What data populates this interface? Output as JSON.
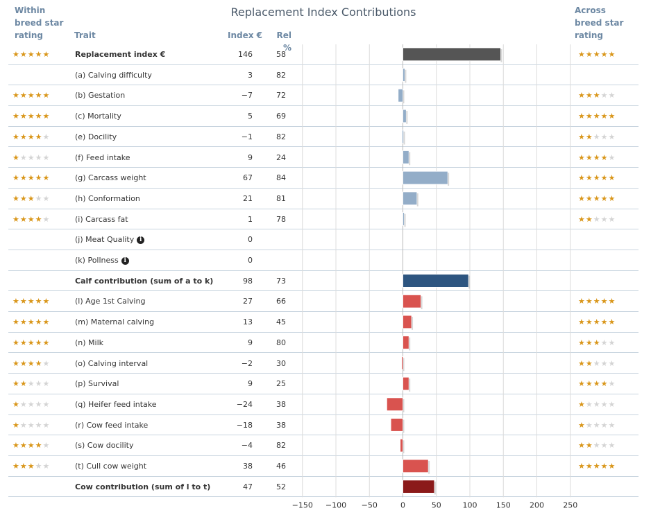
{
  "title": "Replacement Index Contributions",
  "headers": {
    "within": [
      "Within",
      "breed star",
      "rating"
    ],
    "trait": "Trait",
    "index": "Index €",
    "rel": "Rel %",
    "across": [
      "Across",
      "breed star",
      "rating"
    ]
  },
  "colors": {
    "overall": "#555555",
    "calf_trait": "#93adc8",
    "calf_total": "#2d5580",
    "cow_trait": "#d9534f",
    "cow_total": "#8b1a1a",
    "star_on": "#d9961a",
    "star_off": "#d4d4d4"
  },
  "rows": [
    {
      "trait": "Replacement index €",
      "index": "146",
      "rel": "58",
      "within": 5,
      "across": 5,
      "bold": true,
      "info": false
    },
    {
      "trait": "(a) Calving difficulty",
      "index": "3",
      "rel": "82",
      "within": null,
      "across": null,
      "bold": false,
      "info": false
    },
    {
      "trait": "(b) Gestation",
      "index": "−7",
      "rel": "72",
      "within": 5,
      "across": 3,
      "bold": false,
      "info": false
    },
    {
      "trait": "(c) Mortality",
      "index": "5",
      "rel": "69",
      "within": 5,
      "across": 5,
      "bold": false,
      "info": false
    },
    {
      "trait": "(e) Docility",
      "index": "−1",
      "rel": "82",
      "within": 4,
      "across": 2,
      "bold": false,
      "info": false
    },
    {
      "trait": "(f) Feed intake",
      "index": "9",
      "rel": "24",
      "within": 1,
      "across": 4,
      "bold": false,
      "info": false
    },
    {
      "trait": "(g) Carcass weight",
      "index": "67",
      "rel": "84",
      "within": 5,
      "across": 5,
      "bold": false,
      "info": false
    },
    {
      "trait": "(h) Conformation",
      "index": "21",
      "rel": "81",
      "within": 3,
      "across": 5,
      "bold": false,
      "info": false
    },
    {
      "trait": "(i) Carcass fat",
      "index": "1",
      "rel": "78",
      "within": 4,
      "across": 2,
      "bold": false,
      "info": false
    },
    {
      "trait": "(j) Meat Quality",
      "index": "0",
      "rel": "",
      "within": null,
      "across": null,
      "bold": false,
      "info": true
    },
    {
      "trait": "(k) Pollness",
      "index": "0",
      "rel": "",
      "within": null,
      "across": null,
      "bold": false,
      "info": true
    },
    {
      "trait": "Calf contribution (sum of a to k)",
      "index": "98",
      "rel": "73",
      "within": null,
      "across": null,
      "bold": true,
      "info": false
    },
    {
      "trait": "(l) Age 1st Calving",
      "index": "27",
      "rel": "66",
      "within": 5,
      "across": 5,
      "bold": false,
      "info": false
    },
    {
      "trait": "(m) Maternal calving",
      "index": "13",
      "rel": "45",
      "within": 5,
      "across": 5,
      "bold": false,
      "info": false
    },
    {
      "trait": "(n) Milk",
      "index": "9",
      "rel": "80",
      "within": 5,
      "across": 3,
      "bold": false,
      "info": false
    },
    {
      "trait": "(o) Calving interval",
      "index": "−2",
      "rel": "30",
      "within": 4,
      "across": 2,
      "bold": false,
      "info": false
    },
    {
      "trait": "(p) Survival",
      "index": "9",
      "rel": "25",
      "within": 2,
      "across": 4,
      "bold": false,
      "info": false
    },
    {
      "trait": "(q) Heifer feed intake",
      "index": "−24",
      "rel": "38",
      "within": 1,
      "across": 1,
      "bold": false,
      "info": false
    },
    {
      "trait": "(r) Cow feed intake",
      "index": "−18",
      "rel": "38",
      "within": 1,
      "across": 1,
      "bold": false,
      "info": false
    },
    {
      "trait": "(s) Cow docility",
      "index": "−4",
      "rel": "82",
      "within": 4,
      "across": 2,
      "bold": false,
      "info": false
    },
    {
      "trait": "(t) Cull cow weight",
      "index": "38",
      "rel": "46",
      "within": 3,
      "across": 5,
      "bold": false,
      "info": false
    },
    {
      "trait": "Cow contribution (sum of l to t)",
      "index": "47",
      "rel": "52",
      "within": null,
      "across": null,
      "bold": true,
      "info": false
    }
  ],
  "chart_data": {
    "type": "bar",
    "orientation": "horizontal",
    "title": "Replacement Index Contributions",
    "xlim": [
      -150,
      250
    ],
    "x_ticks": [
      "−150",
      "−100",
      "−50",
      "0",
      "50",
      "100",
      "150",
      "200",
      "250"
    ],
    "x_tick_values": [
      -150,
      -100,
      -50,
      0,
      50,
      100,
      150,
      200,
      250
    ],
    "grid": true,
    "categories": [
      "Replacement index €",
      "(a) Calving difficulty",
      "(b) Gestation",
      "(c) Mortality",
      "(e) Docility",
      "(f) Feed intake",
      "(g) Carcass weight",
      "(h) Conformation",
      "(i) Carcass fat",
      "(j) Meat Quality",
      "(k) Pollness",
      "Calf contribution (sum of a to k)",
      "(l) Age 1st Calving",
      "(m) Maternal calving",
      "(n) Milk",
      "(o) Calving interval",
      "(p) Survival",
      "(q) Heifer feed intake",
      "(r) Cow feed intake",
      "(s) Cow docility",
      "(t) Cull cow weight",
      "Cow contribution (sum of l to t)"
    ],
    "values": [
      146,
      3,
      -7,
      5,
      -1,
      9,
      67,
      21,
      1,
      0,
      0,
      98,
      27,
      13,
      9,
      -2,
      9,
      -24,
      -18,
      -4,
      38,
      47
    ],
    "groups": [
      "overall",
      "calf_trait",
      "calf_trait",
      "calf_trait",
      "calf_trait",
      "calf_trait",
      "calf_trait",
      "calf_trait",
      "calf_trait",
      "calf_trait",
      "calf_trait",
      "calf_total",
      "cow_trait",
      "cow_trait",
      "cow_trait",
      "cow_trait",
      "cow_trait",
      "cow_trait",
      "cow_trait",
      "cow_trait",
      "cow_trait",
      "cow_total"
    ]
  }
}
